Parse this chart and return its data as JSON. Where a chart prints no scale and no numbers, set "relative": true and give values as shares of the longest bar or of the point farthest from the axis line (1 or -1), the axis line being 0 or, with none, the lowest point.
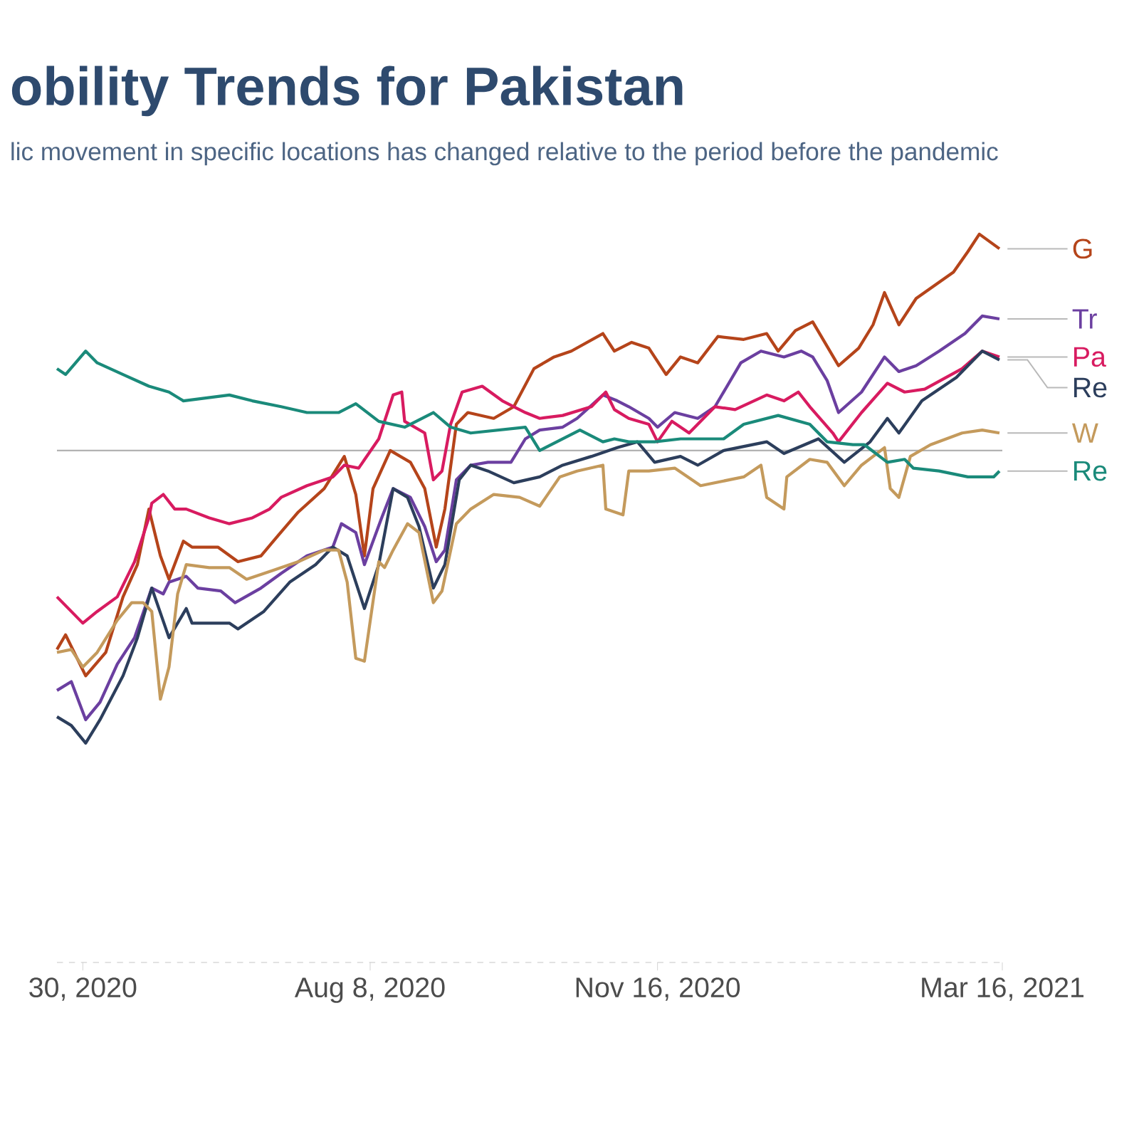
{
  "chart_data": {
    "type": "line",
    "title": "obility Trends for Pakistan",
    "subtitle": "lic movement in specific locations has changed relative to the period before the pandemic",
    "relative": true,
    "xlim": [
      "2020-04-21",
      "2021-03-16"
    ],
    "xticks": [
      {
        "value": "2020-04-30",
        "label": "30, 2020"
      },
      {
        "value": "2020-08-08",
        "label": "Aug 8, 2020"
      },
      {
        "value": "2020-11-16",
        "label": "Nov 16, 2020"
      },
      {
        "value": "2021-03-16",
        "label": "Mar 16, 2021"
      }
    ],
    "series": [
      {
        "name": "G",
        "color": "#b5441a",
        "x": [
          "2020-04-21",
          "2020-04-24",
          "2020-05-01",
          "2020-05-08",
          "2020-05-14",
          "2020-05-19",
          "2020-05-23",
          "2020-05-27",
          "2020-05-30",
          "2020-06-04",
          "2020-06-07",
          "2020-06-16",
          "2020-06-23",
          "2020-07-01",
          "2020-07-07",
          "2020-07-14",
          "2020-07-23",
          "2020-07-30",
          "2020-08-03",
          "2020-08-06",
          "2020-08-09",
          "2020-08-15",
          "2020-08-22",
          "2020-08-27",
          "2020-08-31",
          "2020-09-03",
          "2020-09-07",
          "2020-09-11",
          "2020-09-20",
          "2020-09-27",
          "2020-10-04",
          "2020-10-11",
          "2020-10-17",
          "2020-10-28",
          "2020-11-01",
          "2020-11-07",
          "2020-11-13",
          "2020-11-19",
          "2020-11-24",
          "2020-11-30",
          "2020-12-07",
          "2020-12-16",
          "2020-12-24",
          "2020-12-28",
          "2021-01-03",
          "2021-01-09",
          "2021-01-12",
          "2021-01-18",
          "2021-01-25",
          "2021-01-30",
          "2021-02-03",
          "2021-02-08",
          "2021-02-14",
          "2021-02-27",
          "2021-03-04",
          "2021-03-08",
          "2021-03-15"
        ],
        "values": [
          -0.68,
          -0.63,
          -0.77,
          -0.69,
          -0.5,
          -0.39,
          -0.2,
          -0.36,
          -0.44,
          -0.31,
          -0.33,
          -0.33,
          -0.38,
          -0.36,
          -0.29,
          -0.21,
          -0.13,
          -0.02,
          -0.15,
          -0.36,
          -0.13,
          0.0,
          -0.04,
          -0.13,
          -0.33,
          -0.2,
          0.09,
          0.13,
          0.11,
          0.15,
          0.28,
          0.32,
          0.34,
          0.4,
          0.34,
          0.37,
          0.35,
          0.26,
          0.32,
          0.3,
          0.39,
          0.38,
          0.4,
          0.34,
          0.41,
          0.44,
          0.39,
          0.29,
          0.35,
          0.43,
          0.54,
          0.43,
          0.52,
          0.61,
          0.68,
          0.74,
          0.69
        ]
      },
      {
        "name": "Tr",
        "color": "#6b3fa0",
        "x": [
          "2020-04-21",
          "2020-04-26",
          "2020-05-01",
          "2020-05-06",
          "2020-05-12",
          "2020-05-18",
          "2020-05-24",
          "2020-05-28",
          "2020-05-30",
          "2020-06-05",
          "2020-06-09",
          "2020-06-17",
          "2020-06-22",
          "2020-07-01",
          "2020-07-08",
          "2020-07-17",
          "2020-07-26",
          "2020-07-29",
          "2020-08-03",
          "2020-08-06",
          "2020-08-12",
          "2020-08-16",
          "2020-08-22",
          "2020-08-27",
          "2020-08-31",
          "2020-09-03",
          "2020-09-07",
          "2020-09-12",
          "2020-09-18",
          "2020-09-26",
          "2020-10-01",
          "2020-10-06",
          "2020-10-14",
          "2020-10-19",
          "2020-10-28",
          "2020-11-02",
          "2020-11-06",
          "2020-11-13",
          "2020-11-16",
          "2020-11-22",
          "2020-11-30",
          "2020-12-06",
          "2020-12-15",
          "2020-12-22",
          "2020-12-30",
          "2021-01-05",
          "2021-01-09",
          "2021-01-14",
          "2021-01-18",
          "2021-01-26",
          "2021-02-03",
          "2021-02-08",
          "2021-02-14",
          "2021-02-22",
          "2021-03-03",
          "2021-03-09",
          "2021-03-15"
        ],
        "values": [
          -0.82,
          -0.79,
          -0.92,
          -0.86,
          -0.73,
          -0.64,
          -0.47,
          -0.49,
          -0.45,
          -0.43,
          -0.47,
          -0.48,
          -0.52,
          -0.47,
          -0.42,
          -0.36,
          -0.33,
          -0.25,
          -0.28,
          -0.39,
          -0.23,
          -0.13,
          -0.16,
          -0.26,
          -0.38,
          -0.34,
          -0.1,
          -0.05,
          -0.04,
          -0.04,
          0.04,
          0.07,
          0.08,
          0.11,
          0.19,
          0.17,
          0.15,
          0.11,
          0.08,
          0.13,
          0.11,
          0.15,
          0.3,
          0.34,
          0.32,
          0.34,
          0.32,
          0.24,
          0.13,
          0.2,
          0.32,
          0.27,
          0.29,
          0.34,
          0.4,
          0.46,
          0.45
        ]
      },
      {
        "name": "Pa",
        "color": "#d81b60",
        "x": [
          "2020-04-21",
          "2020-04-30",
          "2020-05-05",
          "2020-05-12",
          "2020-05-18",
          "2020-05-23",
          "2020-05-24",
          "2020-05-28",
          "2020-06-01",
          "2020-06-05",
          "2020-06-13",
          "2020-06-20",
          "2020-06-28",
          "2020-07-04",
          "2020-07-08",
          "2020-07-17",
          "2020-07-26",
          "2020-07-30",
          "2020-08-04",
          "2020-08-11",
          "2020-08-16",
          "2020-08-19",
          "2020-08-20",
          "2020-08-27",
          "2020-08-30",
          "2020-09-02",
          "2020-09-05",
          "2020-09-09",
          "2020-09-16",
          "2020-09-23",
          "2020-10-01",
          "2020-10-06",
          "2020-10-14",
          "2020-10-24",
          "2020-10-29",
          "2020-11-01",
          "2020-11-06",
          "2020-11-13",
          "2020-11-16",
          "2020-11-21",
          "2020-11-27",
          "2020-12-06",
          "2020-12-13",
          "2020-12-24",
          "2020-12-30",
          "2021-01-04",
          "2021-01-08",
          "2021-01-16",
          "2021-01-18",
          "2021-01-26",
          "2021-02-04",
          "2021-02-10",
          "2021-02-17",
          "2021-03-02",
          "2021-03-09",
          "2021-03-15"
        ],
        "values": [
          -0.5,
          -0.59,
          -0.55,
          -0.5,
          -0.38,
          -0.23,
          -0.18,
          -0.15,
          -0.2,
          -0.2,
          -0.23,
          -0.25,
          -0.23,
          -0.2,
          -0.16,
          -0.12,
          -0.09,
          -0.05,
          -0.06,
          0.04,
          0.19,
          0.2,
          0.1,
          0.06,
          -0.1,
          -0.07,
          0.09,
          0.2,
          0.22,
          0.17,
          0.13,
          0.11,
          0.12,
          0.15,
          0.2,
          0.14,
          0.11,
          0.09,
          0.03,
          0.1,
          0.06,
          0.15,
          0.14,
          0.19,
          0.17,
          0.2,
          0.15,
          0.06,
          0.03,
          0.13,
          0.23,
          0.2,
          0.21,
          0.28,
          0.34,
          0.32
        ]
      },
      {
        "name": "Re",
        "color": "#2c3e5c",
        "x": [
          "2020-04-21",
          "2020-04-26",
          "2020-05-01",
          "2020-05-06",
          "2020-05-14",
          "2020-05-19",
          "2020-05-24",
          "2020-05-30",
          "2020-06-05",
          "2020-06-07",
          "2020-06-20",
          "2020-06-23",
          "2020-07-02",
          "2020-07-11",
          "2020-07-20",
          "2020-07-26",
          "2020-07-31",
          "2020-08-06",
          "2020-08-11",
          "2020-08-16",
          "2020-08-21",
          "2020-08-25",
          "2020-08-30",
          "2020-09-03",
          "2020-09-08",
          "2020-09-12",
          "2020-09-18",
          "2020-09-27",
          "2020-10-06",
          "2020-10-14",
          "2020-10-24",
          "2020-11-02",
          "2020-11-09",
          "2020-11-15",
          "2020-11-24",
          "2020-11-30",
          "2020-12-09",
          "2020-12-24",
          "2020-12-30",
          "2021-01-11",
          "2021-01-20",
          "2021-01-29",
          "2021-02-04",
          "2021-02-08",
          "2021-02-16",
          "2021-02-28",
          "2021-03-09",
          "2021-03-15"
        ],
        "values": [
          -0.91,
          -0.94,
          -1.0,
          -0.92,
          -0.77,
          -0.64,
          -0.47,
          -0.64,
          -0.54,
          -0.59,
          -0.59,
          -0.61,
          -0.55,
          -0.45,
          -0.39,
          -0.33,
          -0.36,
          -0.54,
          -0.39,
          -0.13,
          -0.16,
          -0.26,
          -0.47,
          -0.39,
          -0.1,
          -0.05,
          -0.07,
          -0.11,
          -0.09,
          -0.05,
          -0.02,
          0.01,
          0.03,
          -0.04,
          -0.02,
          -0.05,
          0.0,
          0.03,
          -0.01,
          0.04,
          -0.04,
          0.03,
          0.11,
          0.06,
          0.17,
          0.25,
          0.34,
          0.31
        ]
      },
      {
        "name": "W",
        "color": "#c49a5c",
        "x": [
          "2020-04-21",
          "2020-04-26",
          "2020-04-30",
          "2020-05-05",
          "2020-05-12",
          "2020-05-17",
          "2020-05-21",
          "2020-05-24",
          "2020-05-27",
          "2020-05-30",
          "2020-06-02",
          "2020-06-05",
          "2020-06-13",
          "2020-06-20",
          "2020-06-26",
          "2020-07-05",
          "2020-07-14",
          "2020-07-23",
          "2020-07-28",
          "2020-07-31",
          "2020-08-03",
          "2020-08-06",
          "2020-08-11",
          "2020-08-13",
          "2020-08-16",
          "2020-08-21",
          "2020-08-25",
          "2020-08-30",
          "2020-09-02",
          "2020-09-07",
          "2020-09-12",
          "2020-09-20",
          "2020-09-29",
          "2020-10-06",
          "2020-10-13",
          "2020-10-19",
          "2020-10-28",
          "2020-10-29",
          "2020-11-04",
          "2020-11-06",
          "2020-11-13",
          "2020-11-22",
          "2020-12-01",
          "2020-12-16",
          "2020-12-22",
          "2020-12-24",
          "2020-12-30",
          "2020-12-31",
          "2021-01-08",
          "2021-01-14",
          "2021-01-20",
          "2021-01-26",
          "2021-02-03",
          "2021-02-05",
          "2021-02-08",
          "2021-02-12",
          "2021-02-19",
          "2021-03-02",
          "2021-03-09",
          "2021-03-15"
        ],
        "values": [
          -0.69,
          -0.68,
          -0.74,
          -0.69,
          -0.58,
          -0.52,
          -0.52,
          -0.55,
          -0.85,
          -0.74,
          -0.49,
          -0.39,
          -0.4,
          -0.4,
          -0.44,
          -0.41,
          -0.38,
          -0.34,
          -0.34,
          -0.45,
          -0.71,
          -0.72,
          -0.38,
          -0.4,
          -0.34,
          -0.25,
          -0.28,
          -0.52,
          -0.48,
          -0.25,
          -0.2,
          -0.15,
          -0.16,
          -0.19,
          -0.09,
          -0.07,
          -0.05,
          -0.2,
          -0.22,
          -0.07,
          -0.07,
          -0.06,
          -0.12,
          -0.09,
          -0.05,
          -0.16,
          -0.2,
          -0.09,
          -0.03,
          -0.04,
          -0.12,
          -0.05,
          0.01,
          -0.13,
          -0.16,
          -0.02,
          0.02,
          0.06,
          0.07,
          0.06
        ]
      },
      {
        "name": "Re",
        "color": "#1a8a7a",
        "x": [
          "2020-04-21",
          "2020-04-24",
          "2020-05-01",
          "2020-05-05",
          "2020-05-14",
          "2020-05-23",
          "2020-05-30",
          "2020-06-04",
          "2020-06-20",
          "2020-06-28",
          "2020-07-08",
          "2020-07-17",
          "2020-07-28",
          "2020-08-03",
          "2020-08-11",
          "2020-08-20",
          "2020-08-30",
          "2020-09-05",
          "2020-09-12",
          "2020-10-01",
          "2020-10-06",
          "2020-10-20",
          "2020-10-28",
          "2020-11-01",
          "2020-11-06",
          "2020-11-15",
          "2020-11-24",
          "2020-12-09",
          "2020-12-16",
          "2020-12-28",
          "2021-01-08",
          "2021-01-14",
          "2021-01-23",
          "2021-01-27",
          "2021-02-04",
          "2021-02-10",
          "2021-02-13",
          "2021-02-22",
          "2021-03-04",
          "2021-03-13",
          "2021-03-15"
        ],
        "values": [
          0.28,
          0.26,
          0.34,
          0.3,
          0.26,
          0.22,
          0.2,
          0.17,
          0.19,
          0.17,
          0.15,
          0.13,
          0.13,
          0.16,
          0.1,
          0.08,
          0.13,
          0.08,
          0.06,
          0.08,
          0.0,
          0.07,
          0.03,
          0.04,
          0.03,
          0.03,
          0.04,
          0.04,
          0.09,
          0.12,
          0.09,
          0.03,
          0.02,
          0.02,
          -0.04,
          -0.03,
          -0.06,
          -0.07,
          -0.09,
          -0.09,
          -0.07
        ]
      }
    ]
  }
}
